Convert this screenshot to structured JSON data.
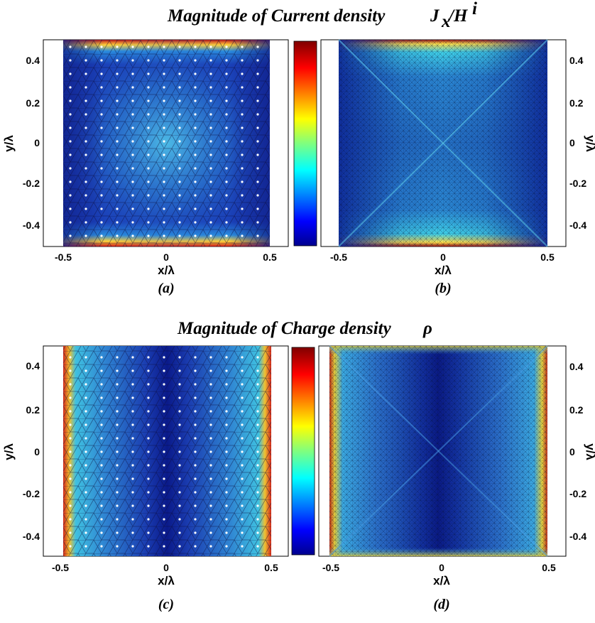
{
  "figure": {
    "title_current": "Magnitude of Current density",
    "title_current_symbol_J": "J",
    "title_current_sub": "x",
    "title_current_slash": "/H",
    "title_current_sup": "i",
    "title_charge": "Magnitude of Charge density",
    "title_charge_symbol": "ρ"
  },
  "chart_data": [
    {
      "id": "a",
      "type": "heatmap",
      "caption": "(a)",
      "xlabel": "x/λ",
      "ylabel": "y/λ",
      "xlim": [
        -0.5,
        0.5
      ],
      "ylim": [
        -0.5,
        0.5
      ],
      "xticks": [
        "-0.5",
        "0",
        "0.5"
      ],
      "yticks": [
        "0.4",
        "0.2",
        "0",
        "-0.2",
        "-0.4"
      ],
      "ylabel_side": "left",
      "colorbar": true,
      "mesh": "irregular-triangular",
      "description_values": "Low (dark blue) magnitude across most of the plate, light-blue center, red/yellow strips along top and bottom edges",
      "colors": {
        "low": "#0a1f9c",
        "high": "#b01010"
      }
    },
    {
      "id": "b",
      "type": "heatmap",
      "caption": "(b)",
      "xlabel": "x/λ",
      "ylabel": "y/λ",
      "xlim": [
        -0.5,
        0.5
      ],
      "ylim": [
        -0.5,
        0.5
      ],
      "xticks": [
        "-0.5",
        "0",
        "0.5"
      ],
      "yticks": [
        "0.4",
        "0.2",
        "0",
        "-0.2",
        "-0.4"
      ],
      "ylabel_side": "right",
      "colorbar": false,
      "mesh": "regular-triangular"
    },
    {
      "id": "c",
      "type": "heatmap",
      "caption": "(c)",
      "xlabel": "x/λ",
      "ylabel": "y/λ",
      "xlim": [
        -0.5,
        0.5
      ],
      "ylim": [
        -0.5,
        0.5
      ],
      "xticks": [
        "-0.5",
        "0",
        "0.5"
      ],
      "yticks": [
        "0.4",
        "0.2",
        "0",
        "-0.2",
        "-0.4"
      ],
      "ylabel_side": "left",
      "colorbar": true,
      "mesh": "irregular-triangular"
    },
    {
      "id": "d",
      "type": "heatmap",
      "caption": "(d)",
      "xlabel": "x/λ",
      "ylabel": "y/λ",
      "xlim": [
        -0.5,
        0.5
      ],
      "ylim": [
        -0.5,
        0.5
      ],
      "xticks": [
        "-0.5",
        "0",
        "0.5"
      ],
      "yticks": [
        "0.4",
        "0.2",
        "0",
        "-0.2",
        "-0.4"
      ],
      "ylabel_side": "right",
      "colorbar": false,
      "mesh": "regular-triangular"
    }
  ]
}
